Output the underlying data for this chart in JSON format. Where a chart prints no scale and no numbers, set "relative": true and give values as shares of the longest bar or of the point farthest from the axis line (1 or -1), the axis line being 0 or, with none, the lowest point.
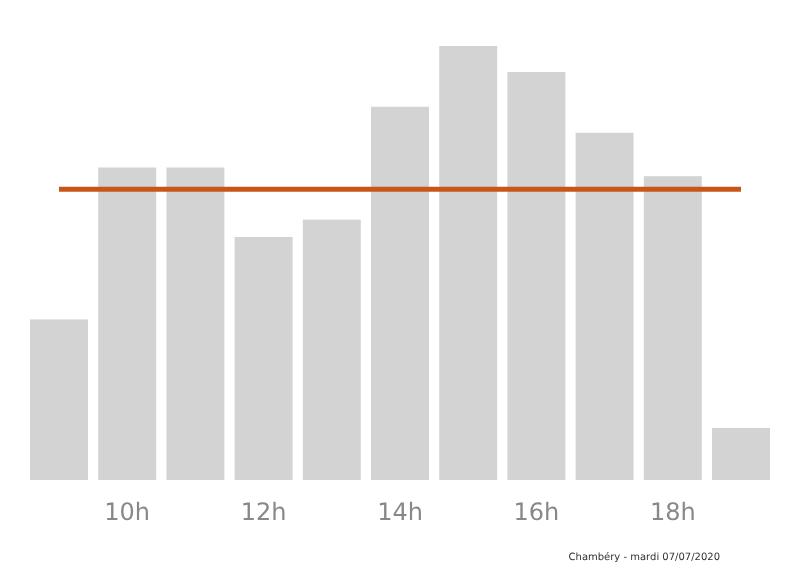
{
  "chart_data": {
    "type": "bar",
    "relative": true,
    "categories": [
      null,
      "10h",
      null,
      "12h",
      null,
      "14h",
      null,
      "16h",
      null,
      "18h",
      null
    ],
    "values": [
      0.37,
      0.72,
      0.72,
      0.56,
      0.6,
      0.86,
      1,
      0.94,
      0.8,
      0.7,
      0.12
    ],
    "color": "#d3d3d3",
    "ref_lines": [
      {
        "axis": "y",
        "value": 0.67,
        "color": "#c8561a"
      }
    ],
    "annotations": [
      "Chambéry - mardi 07/07/2020"
    ]
  }
}
